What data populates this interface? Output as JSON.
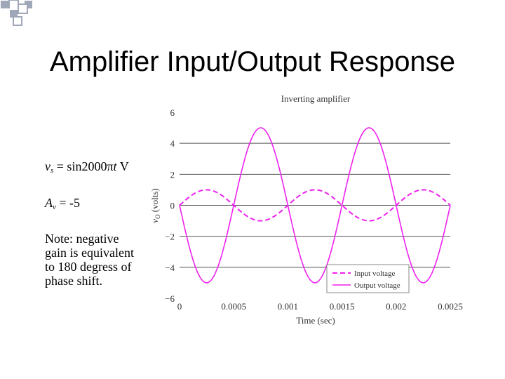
{
  "slide": {
    "title": "Amplifier Input/Output Response",
    "notes": {
      "vs_symbol": "v",
      "vs_sub": "s",
      "vs_expr_pre": " = sin2000π",
      "vs_var": "t",
      "vs_unit": " V",
      "av_symbol": "A",
      "av_sub": "v",
      "av_value": " = -5",
      "note_lines": [
        "Note:  negative",
        "gain is equivalent",
        "to 180 degress of",
        "phase shift."
      ]
    }
  },
  "colors": {
    "accent": "#ee22ee",
    "deco": "#9fa7b8",
    "grid": "#555555"
  },
  "chart_data": {
    "type": "line",
    "title": "Inverting amplifier",
    "xlabel": "Time (sec)",
    "ylabel": "v_O (volts)",
    "ylabel_main": "v",
    "ylabel_sub": "O",
    "ylabel_unit": " (volts)",
    "xlim": [
      0,
      0.0025
    ],
    "ylim": [
      -6,
      6
    ],
    "xticks": [
      0,
      0.0005,
      0.001,
      0.0015,
      0.002,
      0.0025
    ],
    "xtick_labels": [
      "0",
      "0.0005",
      "0.001",
      "0.0015",
      "0.002",
      "0.0025"
    ],
    "yticks": [
      -6,
      -4,
      -2,
      0,
      2,
      4,
      6
    ],
    "ytick_labels": [
      "−6",
      "−4",
      "−2",
      "0",
      "2",
      "4",
      "6"
    ],
    "grid": "horizontal",
    "legend_position": "bottom-right",
    "series": [
      {
        "name": "Input voltage",
        "style": "dashed",
        "color": "#ee22ee",
        "amplitude": 1,
        "frequency_rad_s": 6283.19
      },
      {
        "name": "Output voltage",
        "style": "solid",
        "color": "#ee22ee",
        "amplitude": -5,
        "frequency_rad_s": 6283.19
      }
    ]
  }
}
